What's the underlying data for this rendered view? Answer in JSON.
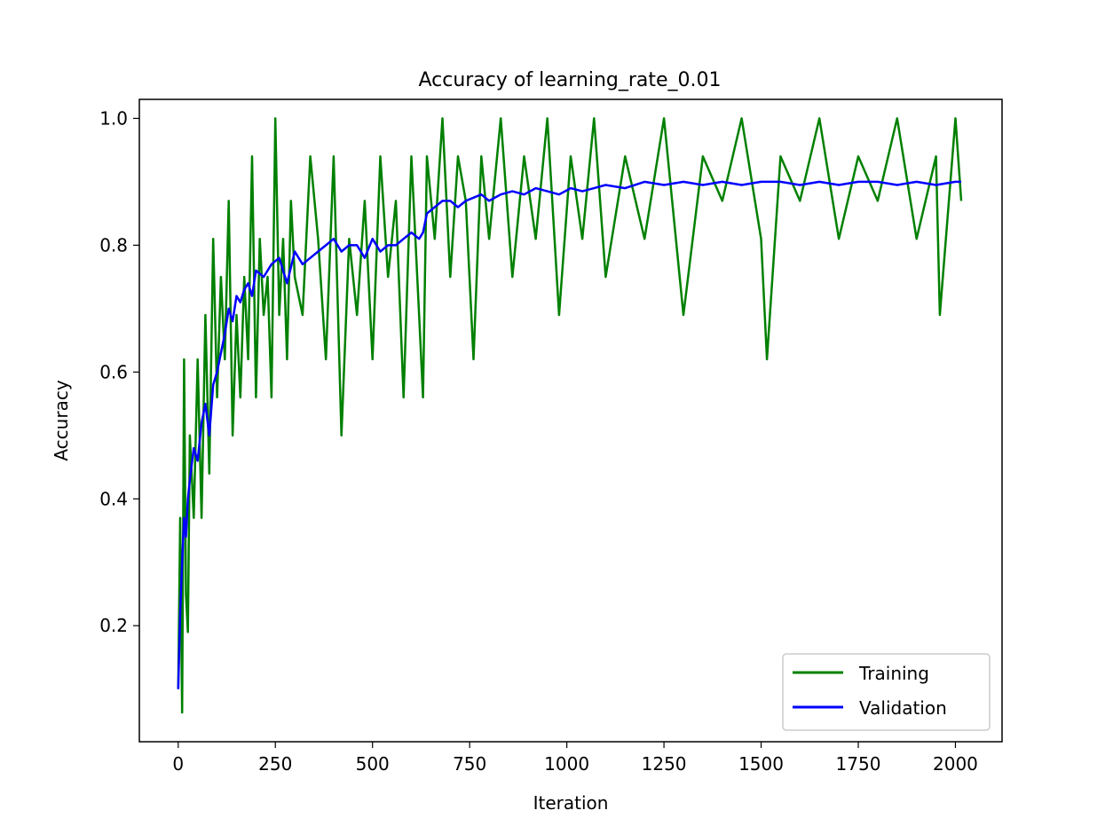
{
  "chart_data": {
    "type": "line",
    "title": "Accuracy of learning_rate_0.01",
    "xlabel": "Iteration",
    "ylabel": "Accuracy",
    "xlim": [
      -100,
      2120
    ],
    "ylim": [
      0.017,
      1.03
    ],
    "xticks": [
      0,
      250,
      500,
      750,
      1000,
      1250,
      1500,
      1750,
      2000
    ],
    "yticks": [
      0.2,
      0.4,
      0.6,
      0.8,
      1.0
    ],
    "xtick_labels": [
      "0",
      "250",
      "500",
      "750",
      "1000",
      "1250",
      "1500",
      "1750",
      "2000"
    ],
    "ytick_labels": [
      "0.2",
      "0.4",
      "0.6",
      "0.8",
      "1.0"
    ],
    "grid": false,
    "legend": "lower right",
    "series": [
      {
        "name": "Training",
        "color": "#008000",
        "x": [
          0,
          5,
          10,
          15,
          20,
          25,
          30,
          40,
          50,
          60,
          70,
          80,
          90,
          100,
          110,
          120,
          130,
          140,
          150,
          160,
          170,
          180,
          190,
          200,
          210,
          220,
          230,
          240,
          250,
          260,
          270,
          280,
          290,
          300,
          320,
          340,
          360,
          380,
          400,
          420,
          440,
          460,
          480,
          500,
          520,
          540,
          560,
          580,
          600,
          620,
          630,
          640,
          660,
          680,
          700,
          720,
          740,
          760,
          780,
          800,
          830,
          860,
          890,
          920,
          950,
          980,
          1010,
          1040,
          1070,
          1100,
          1150,
          1200,
          1250,
          1300,
          1350,
          1400,
          1450,
          1500,
          1515,
          1550,
          1600,
          1650,
          1700,
          1750,
          1800,
          1850,
          1900,
          1950,
          1960,
          2000,
          2015
        ],
        "y": [
          0.1,
          0.37,
          0.063,
          0.62,
          0.25,
          0.19,
          0.5,
          0.37,
          0.62,
          0.37,
          0.69,
          0.44,
          0.81,
          0.56,
          0.75,
          0.62,
          0.87,
          0.5,
          0.69,
          0.56,
          0.75,
          0.62,
          0.94,
          0.56,
          0.81,
          0.69,
          0.75,
          0.56,
          1.0,
          0.69,
          0.81,
          0.62,
          0.87,
          0.75,
          0.69,
          0.94,
          0.81,
          0.62,
          0.94,
          0.5,
          0.81,
          0.69,
          0.87,
          0.62,
          0.94,
          0.75,
          0.87,
          0.56,
          0.94,
          0.69,
          0.56,
          0.94,
          0.81,
          1.0,
          0.75,
          0.94,
          0.87,
          0.62,
          0.94,
          0.81,
          1.0,
          0.75,
          0.94,
          0.81,
          1.0,
          0.69,
          0.94,
          0.81,
          1.0,
          0.75,
          0.94,
          0.81,
          1.0,
          0.69,
          0.94,
          0.87,
          1.0,
          0.81,
          0.62,
          0.94,
          0.87,
          1.0,
          0.81,
          0.94,
          0.87,
          1.0,
          0.81,
          0.94,
          0.69,
          1.0,
          0.87
        ]
      },
      {
        "name": "Validation",
        "color": "#0000ff",
        "x": [
          0,
          5,
          10,
          15,
          20,
          25,
          30,
          40,
          50,
          60,
          70,
          80,
          90,
          100,
          110,
          120,
          130,
          140,
          150,
          160,
          170,
          180,
          190,
          200,
          220,
          240,
          260,
          280,
          300,
          320,
          340,
          360,
          380,
          400,
          420,
          440,
          460,
          480,
          500,
          520,
          540,
          560,
          580,
          600,
          620,
          630,
          640,
          660,
          680,
          700,
          720,
          740,
          760,
          780,
          800,
          830,
          860,
          890,
          920,
          950,
          980,
          1010,
          1040,
          1070,
          1100,
          1150,
          1200,
          1250,
          1300,
          1350,
          1400,
          1450,
          1500,
          1550,
          1600,
          1650,
          1700,
          1750,
          1800,
          1850,
          1900,
          1950,
          2000,
          2015
        ],
        "y": [
          0.1,
          0.22,
          0.3,
          0.37,
          0.34,
          0.4,
          0.43,
          0.48,
          0.46,
          0.52,
          0.55,
          0.5,
          0.58,
          0.6,
          0.63,
          0.66,
          0.7,
          0.68,
          0.72,
          0.71,
          0.73,
          0.74,
          0.72,
          0.76,
          0.75,
          0.77,
          0.78,
          0.74,
          0.79,
          0.77,
          0.78,
          0.79,
          0.8,
          0.81,
          0.79,
          0.8,
          0.8,
          0.78,
          0.81,
          0.79,
          0.8,
          0.8,
          0.81,
          0.82,
          0.81,
          0.82,
          0.85,
          0.86,
          0.87,
          0.87,
          0.86,
          0.87,
          0.875,
          0.88,
          0.87,
          0.88,
          0.885,
          0.88,
          0.89,
          0.885,
          0.88,
          0.89,
          0.885,
          0.89,
          0.895,
          0.89,
          0.9,
          0.895,
          0.9,
          0.895,
          0.9,
          0.895,
          0.9,
          0.9,
          0.895,
          0.9,
          0.895,
          0.9,
          0.9,
          0.895,
          0.9,
          0.895,
          0.9,
          0.9
        ]
      }
    ]
  }
}
